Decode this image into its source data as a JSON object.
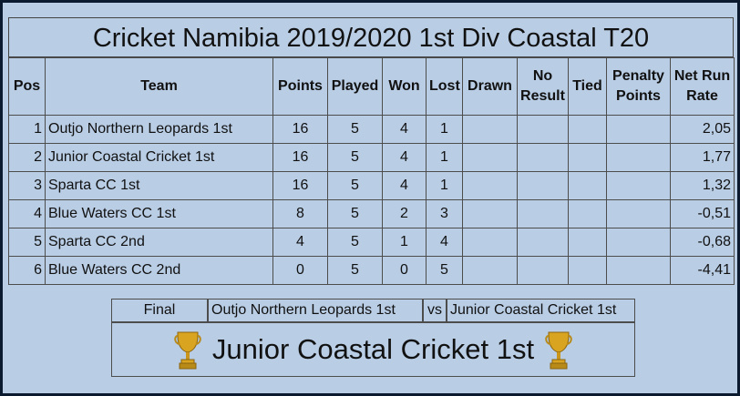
{
  "title": "Cricket Namibia 2019/2020 1st Div Coastal T20",
  "headers": {
    "pos": "Pos",
    "team": "Team",
    "points": "Points",
    "played": "Played",
    "won": "Won",
    "lost": "Lost",
    "drawn": "Drawn",
    "no_result": "No Result",
    "tied": "Tied",
    "penalty_points": "Penalty Points",
    "net_run_rate": "Net Run Rate"
  },
  "rows": [
    {
      "pos": "1",
      "team": "Outjo Northern Leopards 1st",
      "points": "16",
      "played": "5",
      "won": "4",
      "lost": "1",
      "drawn": "",
      "no_result": "",
      "tied": "",
      "penalty": "",
      "nrr": "2,05"
    },
    {
      "pos": "2",
      "team": "Junior Coastal Cricket 1st",
      "points": "16",
      "played": "5",
      "won": "4",
      "lost": "1",
      "drawn": "",
      "no_result": "",
      "tied": "",
      "penalty": "",
      "nrr": "1,77"
    },
    {
      "pos": "3",
      "team": "Sparta CC 1st",
      "points": "16",
      "played": "5",
      "won": "4",
      "lost": "1",
      "drawn": "",
      "no_result": "",
      "tied": "",
      "penalty": "",
      "nrr": "1,32"
    },
    {
      "pos": "4",
      "team": "Blue Waters CC 1st",
      "points": "8",
      "played": "5",
      "won": "2",
      "lost": "3",
      "drawn": "",
      "no_result": "",
      "tied": "",
      "penalty": "",
      "nrr": "-0,51"
    },
    {
      "pos": "5",
      "team": "Sparta CC 2nd",
      "points": "4",
      "played": "5",
      "won": "1",
      "lost": "4",
      "drawn": "",
      "no_result": "",
      "tied": "",
      "penalty": "",
      "nrr": "-0,68"
    },
    {
      "pos": "6",
      "team": "Blue Waters CC 2nd",
      "points": "0",
      "played": "5",
      "won": "0",
      "lost": "5",
      "drawn": "",
      "no_result": "",
      "tied": "",
      "penalty": "",
      "nrr": "-4,41"
    }
  ],
  "final": {
    "label": "Final",
    "team1": "Outjo Northern Leopards 1st",
    "vs": "vs",
    "team2": "Junior Coastal Cricket 1st"
  },
  "winner": {
    "name": "Junior Coastal Cricket 1st",
    "icon": "trophy-icon",
    "trophy_color": "#d9a520"
  },
  "colors": {
    "background": "#b9cde5",
    "border": "#0b1a2e"
  }
}
